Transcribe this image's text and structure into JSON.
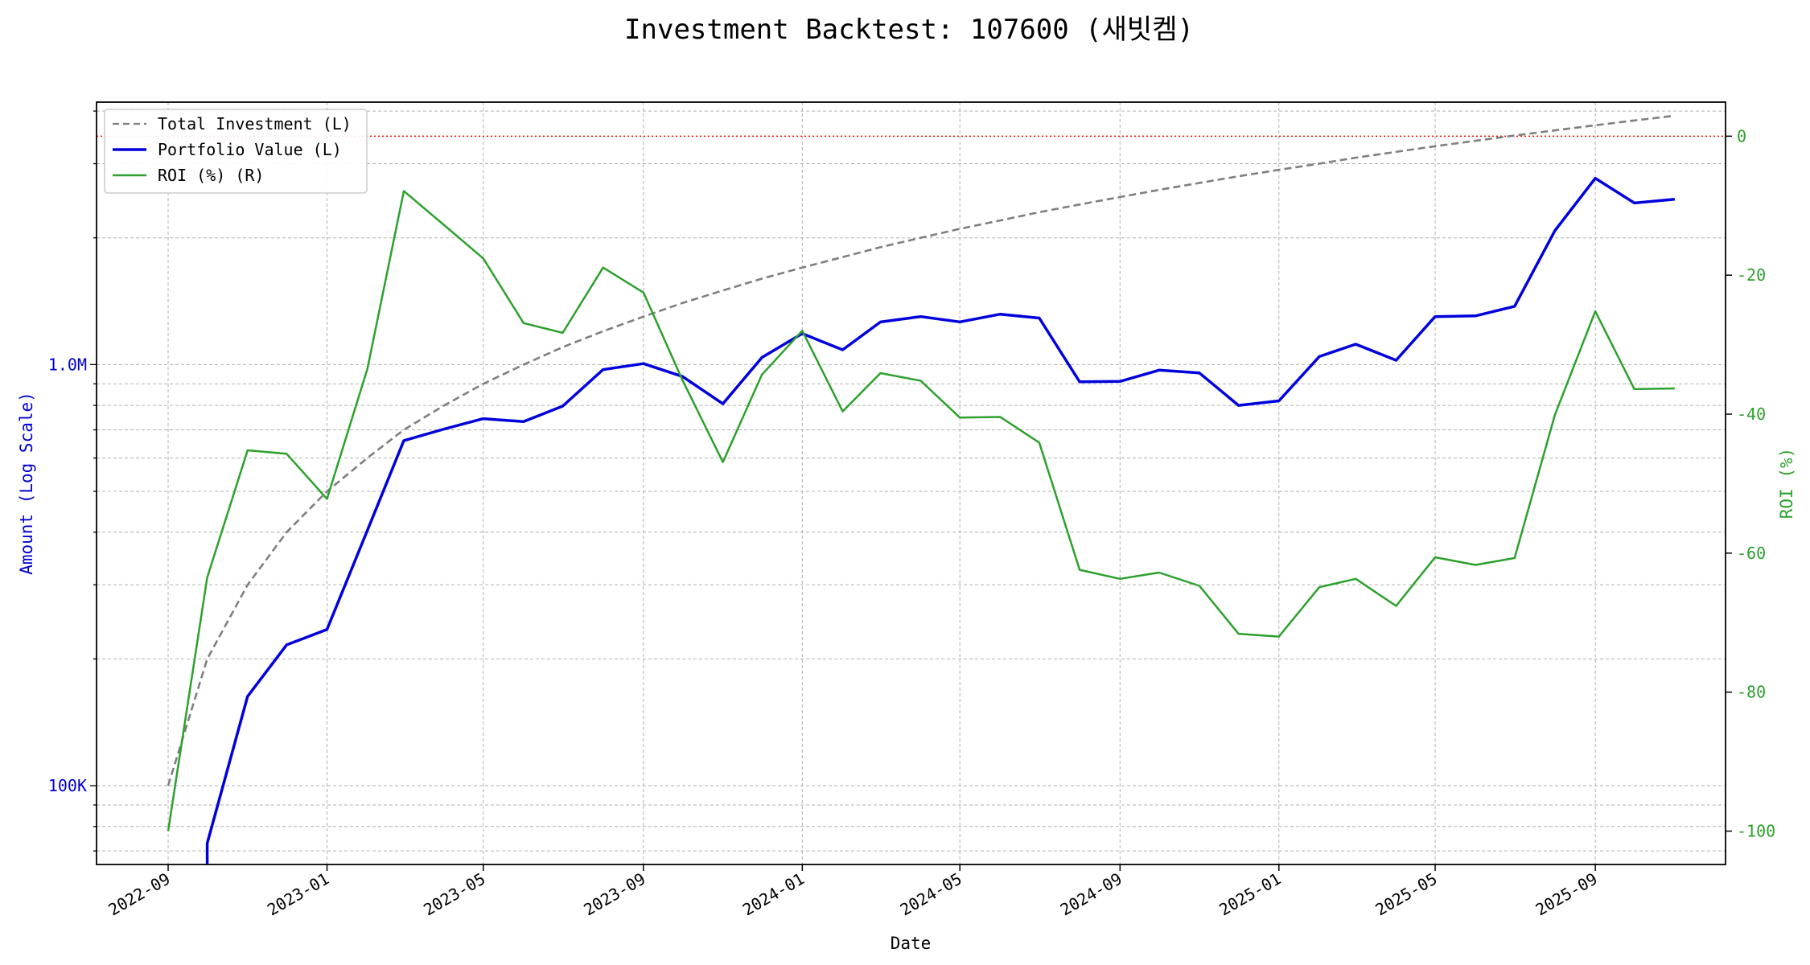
{
  "chart_data": {
    "type": "line",
    "title": "Investment Backtest: 107600 (새빗켐)",
    "xlabel": "Date",
    "ylabel_left": "Amount (Log Scale)",
    "ylabel_right": "ROI (%)",
    "y_left_scale": "log",
    "y_left_ticks": [
      {
        "value": 100000,
        "label": "100K"
      },
      {
        "value": 1000000,
        "label": "1.0M"
      }
    ],
    "y_left_range": [
      65000,
      4200000
    ],
    "y_right_ticks": [
      0,
      -20,
      -40,
      -60,
      -80,
      -100
    ],
    "y_right_range": [
      -104.8,
      4.9
    ],
    "x_tick_labels": [
      "2022-09",
      "2023-01",
      "2023-05",
      "2023-09",
      "2024-01",
      "2024-05",
      "2024-09",
      "2025-01",
      "2025-05",
      "2025-09"
    ],
    "x_range": [
      "2022-07-08",
      "2025-12-10"
    ],
    "grid": true,
    "legend_position": "upper left",
    "reference_line": {
      "axis": "right",
      "value": 0,
      "style": "dotted",
      "color": "#ff0000"
    },
    "dates": [
      "2022-09-01",
      "2022-10-01",
      "2022-11-01",
      "2022-12-01",
      "2023-01-01",
      "2023-02-01",
      "2023-03-01",
      "2023-04-01",
      "2023-05-01",
      "2023-06-01",
      "2023-07-01",
      "2023-08-01",
      "2023-09-01",
      "2023-10-01",
      "2023-11-01",
      "2023-12-01",
      "2024-01-01",
      "2024-02-01",
      "2024-03-01",
      "2024-04-01",
      "2024-05-01",
      "2024-06-01",
      "2024-07-01",
      "2024-08-01",
      "2024-09-01",
      "2024-10-01",
      "2024-11-01",
      "2024-12-01",
      "2025-01-01",
      "2025-02-01",
      "2025-03-01",
      "2025-04-01",
      "2025-05-01",
      "2025-06-01",
      "2025-07-01",
      "2025-08-01",
      "2025-09-01",
      "2025-10-01",
      "2025-11-01"
    ],
    "series": [
      {
        "name": "Total Investment (L)",
        "axis": "left",
        "color": "#7f7f7f",
        "dash": true,
        "values": [
          100000,
          200000,
          300000,
          400000,
          500000,
          600000,
          700000,
          800000,
          900000,
          1000000,
          1100000,
          1200000,
          1300000,
          1400000,
          1500000,
          1600000,
          1700000,
          1800000,
          1900000,
          2000000,
          2100000,
          2200000,
          2300000,
          2400000,
          2500000,
          2600000,
          2700000,
          2800000,
          2900000,
          3000000,
          3100000,
          3200000,
          3300000,
          3400000,
          3500000,
          3600000,
          3700000,
          3800000,
          3900000
        ]
      },
      {
        "name": "Portfolio Value (L)",
        "axis": "left",
        "color": "#0000dd",
        "dash": false,
        "values": [
          null,
          73000,
          163000,
          216000,
          235000,
          404000,
          660000,
          703000,
          744000,
          732000,
          797000,
          973000,
          1005000,
          937000,
          807000,
          1040000,
          1185000,
          1084000,
          1262000,
          1300000,
          1263000,
          1317000,
          1290000,
          910000,
          912000,
          970000,
          955000,
          800000,
          820000,
          1045000,
          1118000,
          1024000,
          1300000,
          1305000,
          1375000,
          2080000,
          2770000,
          2420000,
          2470000
        ]
      },
      {
        "name": "ROI (%) (R)",
        "axis": "right",
        "color": "#2ca02c",
        "dash": false,
        "values": [
          -100,
          -63.5,
          -45.2,
          -45.7,
          -52.2,
          -33.5,
          -7.9,
          -12.8,
          -17.6,
          -26.9,
          -28.3,
          -18.9,
          -22.5,
          -35.1,
          -46.9,
          -34.3,
          -28.0,
          -39.6,
          -34.1,
          -35.2,
          -40.5,
          -40.4,
          -44.1,
          -62.4,
          -63.7,
          -62.8,
          -64.7,
          -71.6,
          -72.0,
          -64.9,
          -63.7,
          -67.6,
          -60.6,
          -61.7,
          -60.7,
          -40.1,
          -25.2,
          -36.4,
          -36.3
        ]
      }
    ]
  }
}
